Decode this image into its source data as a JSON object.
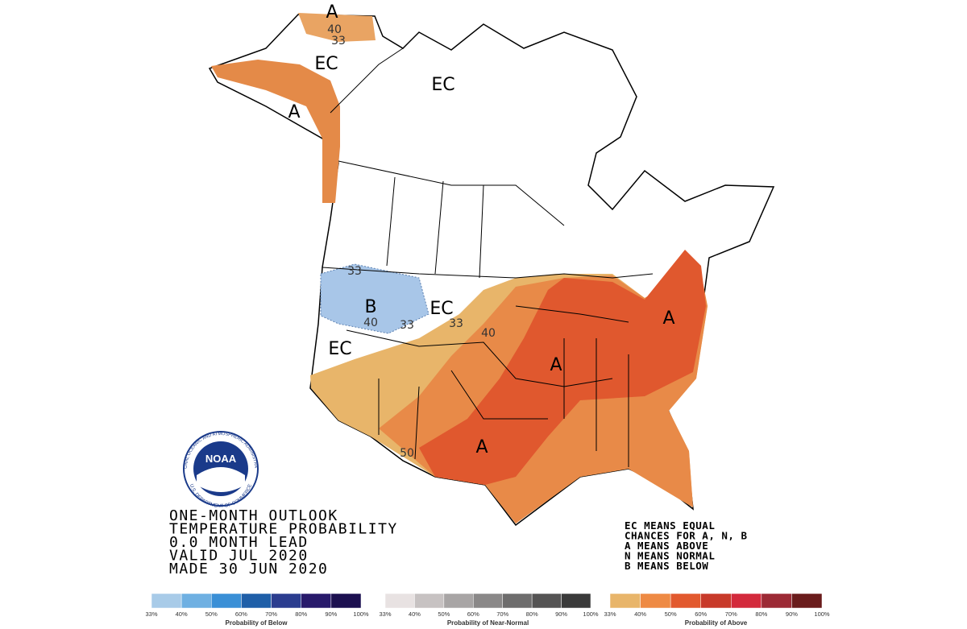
{
  "map": {
    "labels": [
      "A",
      "40",
      "33",
      "EC",
      "A",
      "EC",
      "33",
      "B",
      "40",
      "33",
      "EC",
      "33",
      "40",
      "EC",
      "A",
      "A",
      "A",
      "50"
    ]
  },
  "logo": {
    "name": "NOAA",
    "ring_top": "NATIONAL OCEANIC AND ATMOSPHERIC ADMINISTRATION",
    "ring_bottom": "U.S. DEPARTMENT OF COMMERCE"
  },
  "title": [
    "ONE-MONTH OUTLOOK",
    "TEMPERATURE PROBABILITY",
    "0.0 MONTH LEAD",
    "VALID JUL 2020",
    "MADE 30 JUN 2020"
  ],
  "legend_notes": [
    "EC MEANS EQUAL",
    "CHANCES FOR A, N, B",
    "A MEANS ABOVE",
    "N MEANS NORMAL",
    "B MEANS BELOW"
  ],
  "colorbars": [
    {
      "caption": "Probability of Below",
      "ticks": [
        "33%",
        "40%",
        "50%",
        "60%",
        "70%",
        "80%",
        "90%",
        "100%"
      ],
      "colors": [
        "#a8cbe8",
        "#6fb0e2",
        "#3a8fd6",
        "#1f5fa8",
        "#2b3d8f",
        "#281a6b",
        "#1c1050"
      ]
    },
    {
      "caption": "Probability of Near-Normal",
      "ticks": [
        "33%",
        "40%",
        "50%",
        "60%",
        "70%",
        "80%",
        "90%",
        "100%"
      ],
      "colors": [
        "#e8e2e2",
        "#c7c2c2",
        "#a8a5a5",
        "#8a8888",
        "#6e6d6d",
        "#555454",
        "#3a3a3a"
      ]
    },
    {
      "caption": "Probability of Above",
      "ticks": [
        "33%",
        "40%",
        "50%",
        "60%",
        "70%",
        "80%",
        "90%",
        "100%"
      ],
      "colors": [
        "#e8b56a",
        "#ee8a44",
        "#e2592e",
        "#c83a2a",
        "#d32a3c",
        "#9c2a35",
        "#6a1c1c"
      ]
    }
  ]
}
